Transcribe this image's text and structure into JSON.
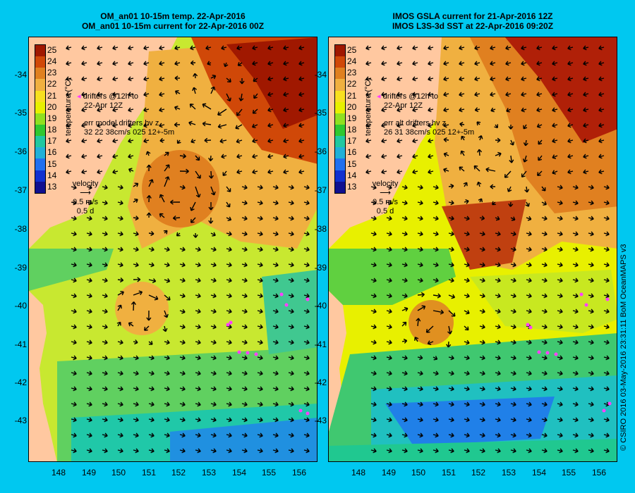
{
  "left": {
    "title_line1": "OM_an01 10-15m temp. 22-Apr-2016",
    "title_line2": "OM_an01 10-15m current for 22-Apr-2016 00Z",
    "drifters_line1": "drifters @12h to",
    "drifters_line2": "22-Apr 12Z",
    "err_line1": "err model drifters hv z",
    "err_line2": "32 22 38cm/s 025 12+-5m"
  },
  "right": {
    "title_line1": "IMOS GSLA current for 21-Apr-2016 12Z",
    "title_line2": "IMOS L3S-3d SST at 22-Apr-2016 09:20Z",
    "drifters_line1": "drifters @12h to",
    "drifters_line2": "22-Apr 12Z",
    "err_line1": "err alt drifters hv z",
    "err_line2": "26 31 38cm/s 025 12+-5m"
  },
  "colorbar": {
    "title": "temperature (°C)",
    "labels": [
      "25",
      "24",
      "23",
      "22",
      "21",
      "20",
      "19",
      "18",
      "17",
      "16",
      "15",
      "14",
      "13"
    ],
    "colors": [
      "#a01800",
      "#d04808",
      "#e08020",
      "#f0b040",
      "#f8e020",
      "#e8f000",
      "#90e020",
      "#30c830",
      "#20c8a0",
      "#20b0d8",
      "#2070f0",
      "#1030d0",
      "#101090"
    ]
  },
  "velocity": {
    "label": "velocity",
    "speed": "0.5 m/s",
    "time": "0.5 d"
  },
  "axes": {
    "lat_labels": [
      "-34",
      "-35",
      "-36",
      "-37",
      "-38",
      "-39",
      "-40",
      "-41",
      "-42",
      "-43"
    ],
    "lon_labels": [
      "148",
      "149",
      "150",
      "151",
      "152",
      "153",
      "154",
      "155",
      "156"
    ]
  },
  "credit": "© CSIRO 2016  03-May-2016 23:31:11 BoM OceanMAPS v3",
  "colors": {
    "background": "#00c8f0",
    "land": "#ffc8a0",
    "drifter": "#ff40ff"
  }
}
